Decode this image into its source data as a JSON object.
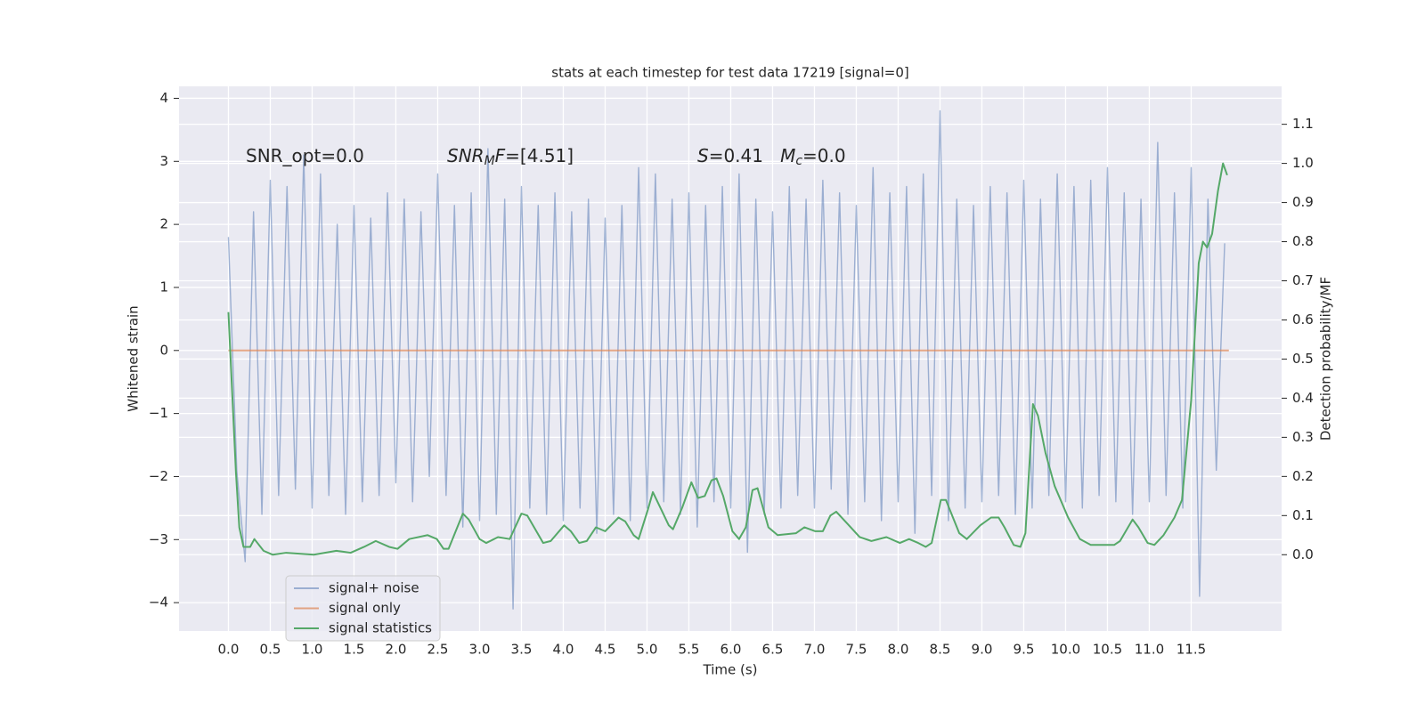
{
  "chart_data": {
    "type": "line",
    "title": "stats at each timestep for test data 17219 [signal=0]",
    "xlabel": "Time (s)",
    "ylabel": "Whitened strain",
    "y2label": "Detection probability/MF",
    "annotations": [
      {
        "segments": [
          {
            "text": "SNR_opt=0.0"
          }
        ]
      },
      {
        "segments": [
          {
            "text": "SNR",
            "italic": true
          },
          {
            "text": "M",
            "italic": true,
            "sub": true
          },
          {
            "text": "F",
            "italic": true
          },
          {
            "text": "=[4.51]"
          }
        ]
      },
      {
        "segments": [
          {
            "text": "S",
            "italic": true
          },
          {
            "text": "=0.41   "
          },
          {
            "text": "M",
            "italic": true
          },
          {
            "text": "c",
            "italic": true,
            "sub": true
          },
          {
            "text": "=0.0"
          }
        ]
      }
    ],
    "xlim": [
      -0.59,
      12.58
    ],
    "ylim": [
      -4.45,
      4.19
    ],
    "y2lim": [
      -0.195,
      1.197
    ],
    "xticks": [
      {
        "value": 0,
        "label": "0.0"
      },
      0.5,
      {
        "value": 1,
        "label": "1.0"
      },
      1.5,
      {
        "value": 2,
        "label": "2.0"
      },
      2.5,
      {
        "value": 3,
        "label": "3.0"
      },
      3.5,
      {
        "value": 4,
        "label": "4.0"
      },
      4.5,
      {
        "value": 5,
        "label": "5.0"
      },
      5.5,
      {
        "value": 6,
        "label": "6.0"
      },
      6.5,
      {
        "value": 7,
        "label": "7.0"
      },
      7.5,
      {
        "value": 8,
        "label": "8.0"
      },
      8.5,
      {
        "value": 9,
        "label": "9.0"
      },
      9.5,
      {
        "value": 10,
        "label": "10.0"
      },
      10.5,
      {
        "value": 11,
        "label": "11.0"
      },
      11.5
    ],
    "yticks": [
      {
        "value": -4,
        "label": "−4"
      },
      {
        "value": -3,
        "label": "−3"
      },
      {
        "value": -2,
        "label": "−2"
      },
      {
        "value": -1,
        "label": "−1"
      },
      0,
      1,
      2,
      3,
      4
    ],
    "y2ticks": [
      {
        "value": 0,
        "label": "0.0"
      },
      0.1,
      0.2,
      0.3,
      0.4,
      0.5,
      0.6,
      0.7,
      0.8,
      0.9,
      {
        "value": 1,
        "label": "1.0"
      },
      1.1
    ],
    "grid": true,
    "legend": "lower left",
    "series": [
      {
        "name": "signal+ noise",
        "color": "#4c72b0",
        "alpha": 0.5,
        "x": [
          0,
          0.1,
          0.2,
          0.3,
          0.4,
          0.5,
          0.6,
          0.7,
          0.8,
          0.9,
          1,
          1.1,
          1.2,
          1.3,
          1.4,
          1.5,
          1.6,
          1.7,
          1.8,
          1.9,
          2,
          2.1,
          2.2,
          2.3,
          2.4,
          2.5,
          2.6,
          2.7,
          2.8,
          2.9,
          3,
          3.1,
          3.2,
          3.3,
          3.4,
          3.5,
          3.6,
          3.7,
          3.8,
          3.9,
          4,
          4.1,
          4.2,
          4.3,
          4.4,
          4.5,
          4.6,
          4.7,
          4.8,
          4.9,
          5,
          5.1,
          5.2,
          5.3,
          5.4,
          5.5,
          5.6,
          5.7,
          5.8,
          5.9,
          6,
          6.1,
          6.2,
          6.3,
          6.4,
          6.5,
          6.6,
          6.7,
          6.8,
          6.9,
          7,
          7.1,
          7.2,
          7.3,
          7.4,
          7.5,
          7.6,
          7.7,
          7.8,
          7.9,
          8,
          8.1,
          8.2,
          8.3,
          8.4,
          8.5,
          8.6,
          8.7,
          8.8,
          8.9,
          9,
          9.1,
          9.2,
          9.3,
          9.4,
          9.5,
          9.6,
          9.7,
          9.8,
          9.9,
          10,
          10.1,
          10.2,
          10.3,
          10.4,
          10.5,
          10.6,
          10.7,
          10.8,
          10.9,
          11,
          11.1,
          11.2,
          11.3,
          11.4,
          11.5,
          11.6,
          11.7,
          11.8,
          11.9
        ],
        "values": [
          1.8,
          -1.9,
          -3.35,
          2.2,
          -2.6,
          2.7,
          -2.3,
          2.6,
          -2.2,
          3.1,
          -2.5,
          2.8,
          -2.3,
          2.0,
          -2.6,
          2.3,
          -2.4,
          2.1,
          -2.3,
          2.5,
          -2.1,
          2.4,
          -2.4,
          2.2,
          -2.0,
          2.8,
          -2.3,
          2.3,
          -2.8,
          2.5,
          -2.7,
          3.2,
          -2.6,
          2.4,
          -4.1,
          2.6,
          -2.5,
          2.3,
          -2.6,
          2.5,
          -2.7,
          2.2,
          -2.5,
          2.4,
          -2.9,
          2.1,
          -2.6,
          2.3,
          -2.7,
          2.9,
          -2.5,
          2.8,
          -2.4,
          2.4,
          -2.6,
          2.5,
          -2.8,
          2.3,
          -2.4,
          2.6,
          -2.5,
          2.8,
          -3.2,
          2.4,
          -2.6,
          2.2,
          -2.5,
          2.6,
          -2.3,
          2.4,
          -2.5,
          2.7,
          -2.2,
          2.5,
          -2.6,
          2.3,
          -2.4,
          2.9,
          -2.7,
          2.5,
          -2.4,
          2.6,
          -2.9,
          2.8,
          -2.3,
          3.8,
          -2.7,
          2.4,
          -2.5,
          2.3,
          -2.4,
          2.6,
          -2.3,
          2.5,
          -2.6,
          2.7,
          -2.5,
          2.4,
          -2.3,
          2.8,
          -2.4,
          2.6,
          -2.5,
          2.7,
          -2.3,
          2.9,
          -2.4,
          2.5,
          -2.6,
          2.4,
          -2.4,
          3.3,
          -2.3,
          2.5,
          -2.5,
          2.9,
          -3.9,
          2.4,
          -1.9,
          1.7
        ]
      },
      {
        "name": "signal only",
        "color": "#dd8452",
        "alpha": 0.7,
        "x": [
          0,
          11.95
        ],
        "values": [
          0,
          0
        ]
      },
      {
        "name": "signal statistics",
        "color": "#55a868",
        "alpha": 1,
        "axis": "y2",
        "x": [
          0,
          0.09,
          0.13,
          0.18,
          0.26,
          0.31,
          0.42,
          0.53,
          0.69,
          1.02,
          1.29,
          1.46,
          1.62,
          1.76,
          1.92,
          2.02,
          2.16,
          2.38,
          2.49,
          2.57,
          2.63,
          2.8,
          2.87,
          3,
          3.08,
          3.22,
          3.36,
          3.5,
          3.57,
          3.76,
          3.85,
          4.01,
          4.09,
          4.19,
          4.28,
          4.39,
          4.5,
          4.66,
          4.74,
          4.84,
          4.9,
          5.01,
          5.07,
          5.16,
          5.26,
          5.31,
          5.42,
          5.53,
          5.61,
          5.69,
          5.77,
          5.83,
          5.91,
          6.02,
          6.1,
          6.18,
          6.26,
          6.32,
          6.45,
          6.56,
          6.78,
          6.88,
          7.01,
          7.1,
          7.19,
          7.26,
          7.39,
          7.54,
          7.68,
          7.86,
          8.02,
          8.13,
          8.24,
          8.33,
          8.4,
          8.51,
          8.57,
          8.73,
          8.82,
          8.98,
          9.11,
          9.2,
          9.27,
          9.38,
          9.46,
          9.52,
          9.61,
          9.67,
          9.76,
          9.87,
          10.03,
          10.17,
          10.3,
          10.58,
          10.65,
          10.8,
          10.87,
          10.98,
          11.06,
          11.17,
          11.3,
          11.39,
          11.5,
          11.59,
          11.64,
          11.69,
          11.75,
          11.82,
          11.88,
          11.93
        ],
        "values": [
          0.62,
          0.21,
          0.07,
          0.02,
          0.02,
          0.04,
          0.01,
          0,
          0.005,
          0,
          0.01,
          0.005,
          0.02,
          0.035,
          0.02,
          0.015,
          0.04,
          0.05,
          0.04,
          0.015,
          0.015,
          0.105,
          0.09,
          0.04,
          0.03,
          0.045,
          0.04,
          0.105,
          0.1,
          0.03,
          0.035,
          0.075,
          0.06,
          0.03,
          0.035,
          0.07,
          0.06,
          0.095,
          0.085,
          0.05,
          0.04,
          0.115,
          0.16,
          0.12,
          0.075,
          0.065,
          0.12,
          0.185,
          0.145,
          0.15,
          0.19,
          0.195,
          0.15,
          0.06,
          0.04,
          0.07,
          0.165,
          0.17,
          0.07,
          0.05,
          0.055,
          0.07,
          0.06,
          0.06,
          0.1,
          0.11,
          0.08,
          0.045,
          0.035,
          0.045,
          0.03,
          0.04,
          0.03,
          0.02,
          0.03,
          0.14,
          0.14,
          0.055,
          0.04,
          0.075,
          0.095,
          0.095,
          0.07,
          0.025,
          0.02,
          0.055,
          0.385,
          0.355,
          0.26,
          0.175,
          0.095,
          0.04,
          0.025,
          0.025,
          0.035,
          0.09,
          0.07,
          0.03,
          0.025,
          0.05,
          0.095,
          0.14,
          0.395,
          0.745,
          0.8,
          0.785,
          0.82,
          0.93,
          1.0,
          0.97
        ]
      }
    ]
  }
}
